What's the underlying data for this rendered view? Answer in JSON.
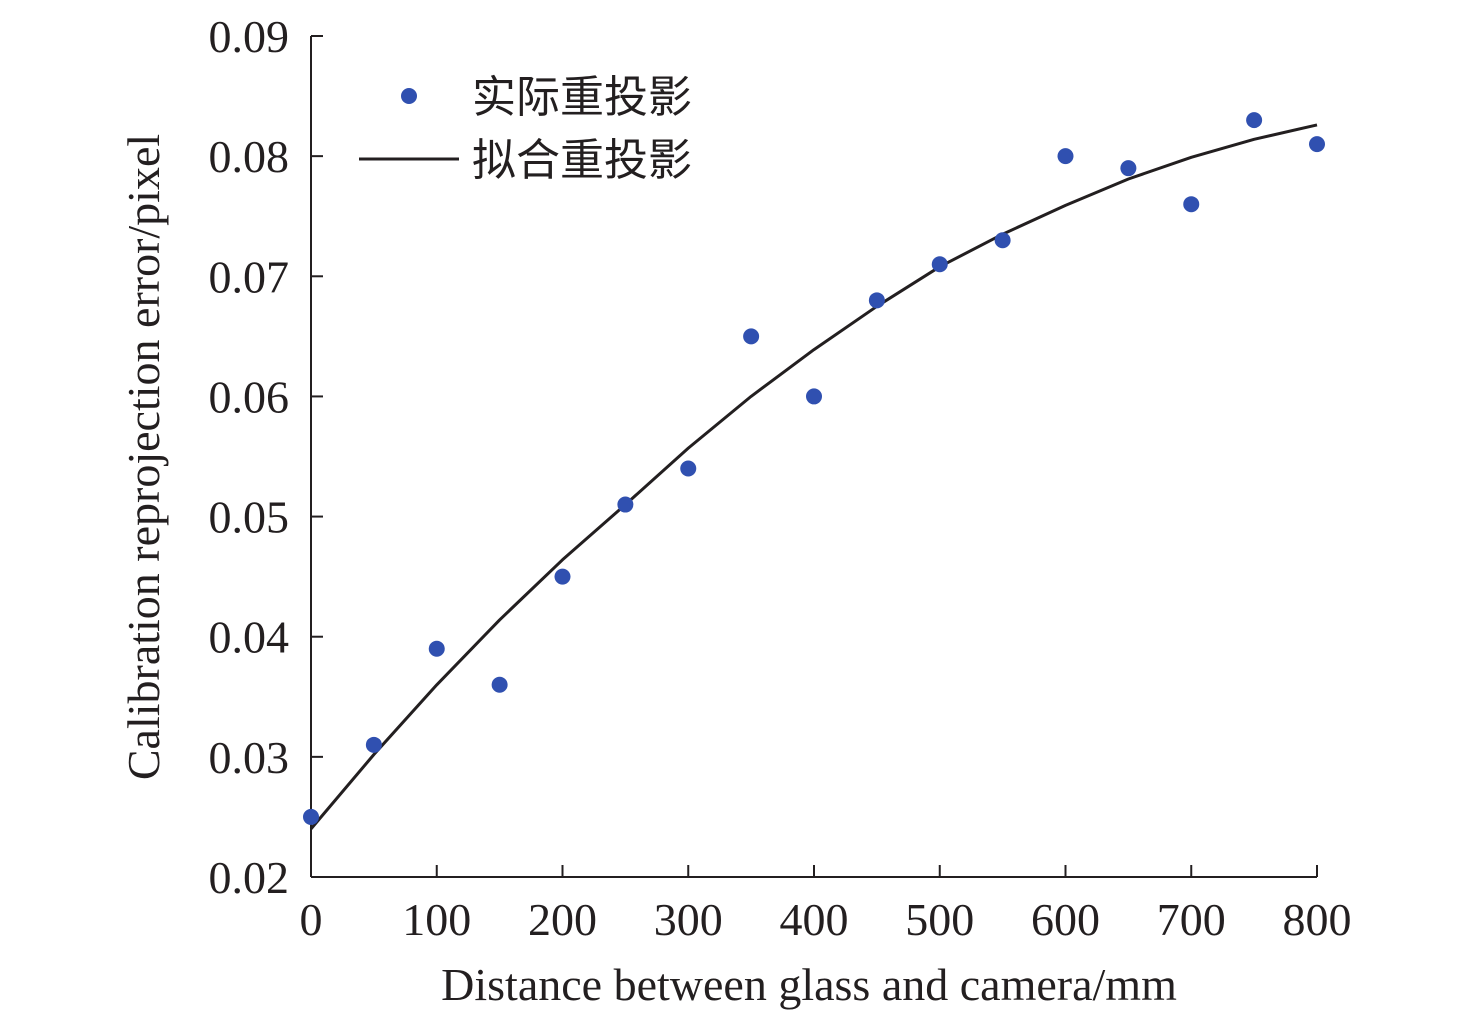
{
  "chart_data": {
    "type": "scatter",
    "xlabel": "Distance between glass and camera/mm",
    "ylabel": "Calibration reprojection error/pixel",
    "xlim": [
      0,
      800
    ],
    "ylim": [
      0.02,
      0.09
    ],
    "xticks": [
      "0",
      "100",
      "200",
      "300",
      "400",
      "500",
      "600",
      "700",
      "800"
    ],
    "yticks": [
      "0.02",
      "0.03",
      "0.04",
      "0.05",
      "0.06",
      "0.07",
      "0.08",
      "0.09"
    ],
    "grid": false,
    "legend_position": "top-left",
    "series": [
      {
        "name": "实际重投影",
        "kind": "scatter",
        "color": "#3050b0",
        "x": [
          0,
          50,
          100,
          150,
          200,
          250,
          300,
          350,
          400,
          450,
          500,
          550,
          600,
          650,
          700,
          750,
          800
        ],
        "y": [
          0.025,
          0.031,
          0.039,
          0.036,
          0.045,
          0.051,
          0.054,
          0.065,
          0.06,
          0.068,
          0.071,
          0.073,
          0.08,
          0.079,
          0.076,
          0.083,
          0.081
        ]
      },
      {
        "name": "拟合重投影",
        "kind": "line",
        "color": "#231f20",
        "x": [
          0,
          50,
          100,
          150,
          200,
          250,
          300,
          350,
          400,
          450,
          500,
          550,
          600,
          650,
          700,
          750,
          800
        ],
        "y": [
          0.024,
          0.0302,
          0.036,
          0.0414,
          0.0464,
          0.051,
          0.0557,
          0.06,
          0.0639,
          0.0675,
          0.0708,
          0.0735,
          0.0759,
          0.0781,
          0.0799,
          0.0814,
          0.0826
        ]
      }
    ]
  }
}
